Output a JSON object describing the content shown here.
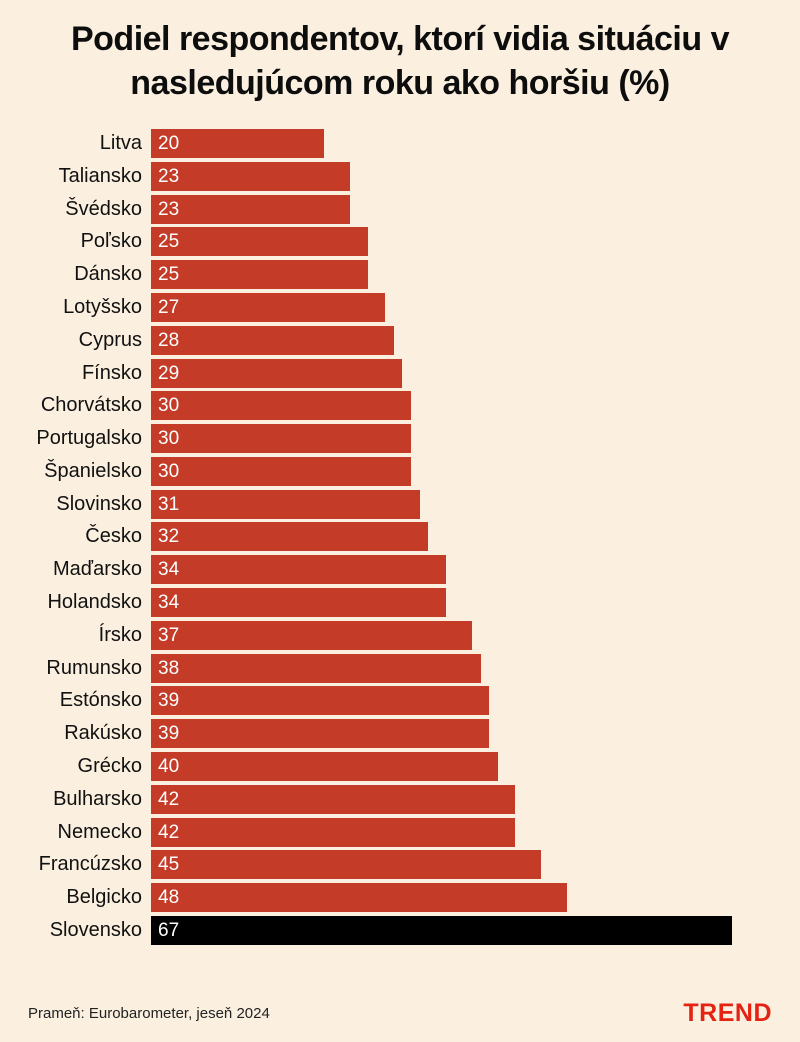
{
  "title": "Podiel respondentov, ktorí vidia situáciu v nasledujúcom roku ako horšiu (%)",
  "footer": {
    "source": "Prameň: Eurobarometer, jeseň 2024",
    "logo": "TREND"
  },
  "colors": {
    "background": "#fbf0e0",
    "bar": "#c43b28",
    "highlight_bar": "#000000",
    "value_text": "#ffffff",
    "label_text": "#111111",
    "logo_red": "#e42313"
  },
  "chart_data": {
    "type": "bar",
    "orientation": "horizontal",
    "title": "Podiel respondentov, ktorí vidia situáciu v nasledujúcom roku ako horšiu (%)",
    "unit": "%",
    "xlim": [
      0,
      67
    ],
    "grid": false,
    "legend": false,
    "highlight_category": "Slovensko",
    "categories": [
      "Litva",
      "Taliansko",
      "Švédsko",
      "Poľsko",
      "Dánsko",
      "Lotyšsko",
      "Cyprus",
      "Fínsko",
      "Chorvátsko",
      "Portugalsko",
      "Španielsko",
      "Slovinsko",
      "Česko",
      "Maďarsko",
      "Holandsko",
      "Írsko",
      "Rumunsko",
      "Estónsko",
      "Rakúsko",
      "Grécko",
      "Bulharsko",
      "Nemecko",
      "Francúzsko",
      "Belgicko",
      "Slovensko"
    ],
    "values": [
      20,
      23,
      23,
      25,
      25,
      27,
      28,
      29,
      30,
      30,
      30,
      31,
      32,
      34,
      34,
      37,
      38,
      39,
      39,
      40,
      42,
      42,
      45,
      48,
      67
    ]
  }
}
